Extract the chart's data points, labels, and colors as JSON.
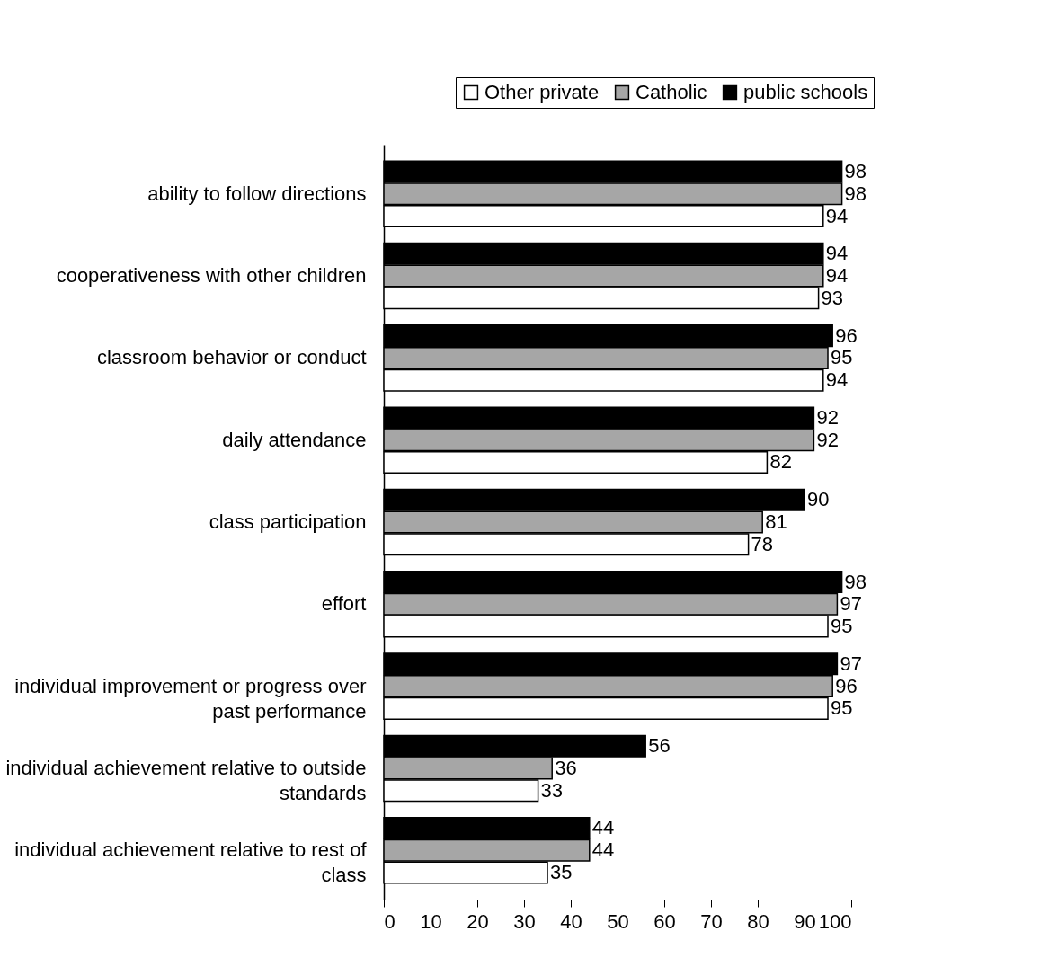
{
  "chart_data": {
    "type": "bar",
    "orientation": "horizontal",
    "categories": [
      "ability to follow directions",
      "cooperativeness with other children",
      "classroom behavior or conduct",
      "daily attendance",
      "class participation",
      "effort",
      "individual improvement or progress over past performance",
      "individual achievement relative to outside standards",
      "individual achievement relative to rest of class"
    ],
    "series": [
      {
        "name": "Other private",
        "color": "#ffffff",
        "values": [
          94,
          93,
          94,
          82,
          78,
          95,
          95,
          33,
          35
        ]
      },
      {
        "name": "Catholic",
        "color": "#a6a6a6",
        "values": [
          98,
          94,
          95,
          92,
          81,
          97,
          96,
          36,
          44
        ]
      },
      {
        "name": "public schools",
        "color": "#000000",
        "values": [
          98,
          94,
          96,
          92,
          90,
          98,
          97,
          56,
          44
        ]
      }
    ],
    "xlim": [
      0,
      100
    ],
    "xticks": [
      0,
      10,
      20,
      30,
      40,
      50,
      60,
      70,
      80,
      90,
      100
    ],
    "data_labels": true,
    "legend": "top right",
    "grid": false
  }
}
